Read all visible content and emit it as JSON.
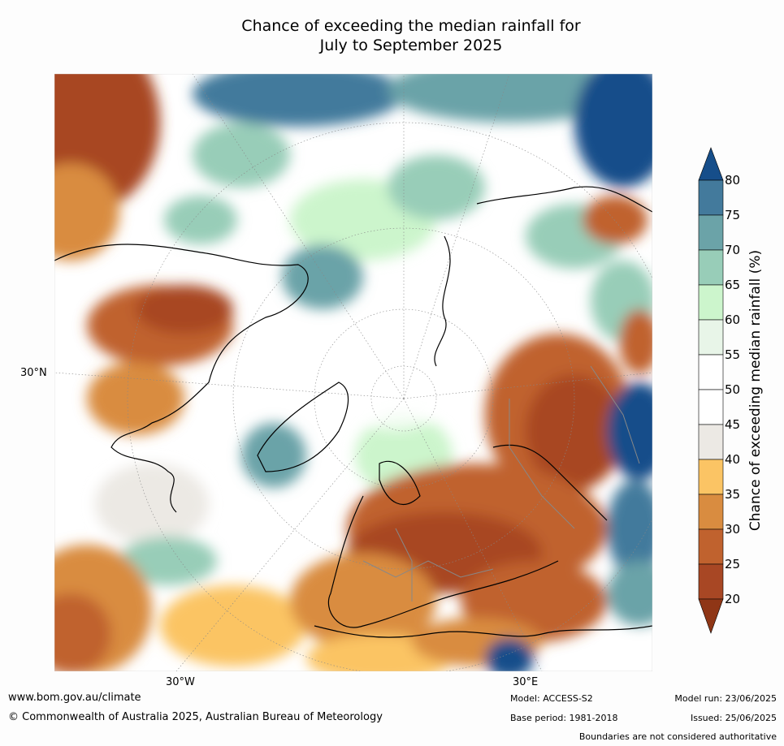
{
  "title": {
    "line1": "Chance of exceeding the median rainfall for",
    "line2": "July to September 2025"
  },
  "map_labels": {
    "lat_30n": "30°N",
    "lon_30w": "30°W",
    "lon_30e": "30°E"
  },
  "colorbar": {
    "label": "Chance of exceeding median rainfall (%)",
    "ticks": [
      "20",
      "25",
      "30",
      "35",
      "40",
      "45",
      "50",
      "55",
      "60",
      "65",
      "70",
      "75",
      "80"
    ],
    "bins": [
      {
        "range": "<20",
        "color": "#8f3616"
      },
      {
        "range": "20-25",
        "color": "#a84724"
      },
      {
        "range": "25-30",
        "color": "#c0622e"
      },
      {
        "range": "30-35",
        "color": "#d98c40"
      },
      {
        "range": "35-40",
        "color": "#fbc464"
      },
      {
        "range": "40-45",
        "color": "#ece9e4"
      },
      {
        "range": "45-50",
        "color": "#ffffff"
      },
      {
        "range": "50-55",
        "color": "#ffffff"
      },
      {
        "range": "55-60",
        "color": "#e8f5e8"
      },
      {
        "range": "60-65",
        "color": "#ccf5cc"
      },
      {
        "range": "65-70",
        "color": "#98cdb8"
      },
      {
        "range": "70-75",
        "color": "#6ba3a8"
      },
      {
        "range": "75-80",
        "color": "#437a9c"
      },
      {
        "range": ">80",
        "color": "#164e8a"
      }
    ]
  },
  "footer": {
    "website": "www.bom.gov.au/climate",
    "copyright": "© Commonwealth of Australia 2025, Australian Bureau of Meteorology",
    "model": "Model: ACCESS-S2",
    "base_period": "Base period: 1981-2018",
    "model_run": "Model run: 23/06/2025",
    "issued": "Issued: 25/06/2025",
    "disclaimer": "Boundaries are not considered authoritative"
  }
}
